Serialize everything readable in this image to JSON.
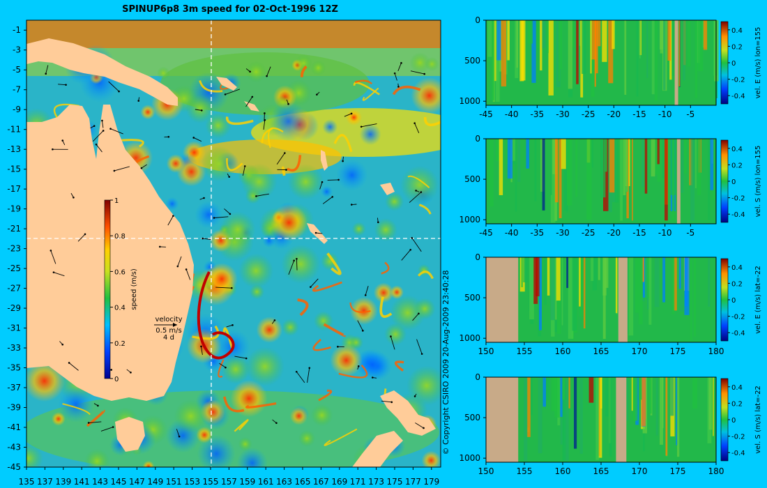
{
  "page": {
    "title": "SPINUP6p8 3m speed for 02-Oct-1996 12Z",
    "copyright": "© Copyright CSIRO 2009  20-Aug-2009 23:40:28",
    "background_color": "#00ccff",
    "land_color": "#ffcc99",
    "section_land_color": "#c8aa88"
  },
  "chart_data": [
    {
      "type": "heatmap",
      "panel": "map",
      "title": "SPINUP6p8 3m speed for 02-Oct-1996 12Z",
      "x_ticks": [
        "135",
        "137",
        "139",
        "141",
        "143",
        "145",
        "147",
        "149",
        "151",
        "153",
        "155",
        "157",
        "159",
        "161",
        "163",
        "165",
        "167",
        "169",
        "171",
        "173",
        "175",
        "177",
        "179"
      ],
      "y_ticks": [
        "-1",
        "-3",
        "-5",
        "-7",
        "-9",
        "-11",
        "-13",
        "-15",
        "-17",
        "-19",
        "-21",
        "-23",
        "-25",
        "-27",
        "-29",
        "-31",
        "-33",
        "-35",
        "-37",
        "-39",
        "-41",
        "-43",
        "-45"
      ],
      "xlim": [
        135,
        180
      ],
      "ylim": [
        -45,
        0
      ],
      "section_lines": {
        "lon": 155,
        "lat": -22
      },
      "colorbar": {
        "label": "speed (m/s)",
        "ticks": [
          "1",
          "0.8",
          "0.6",
          "0.4",
          "0.2",
          "0"
        ],
        "range": [
          0,
          1
        ]
      },
      "velocity_key": {
        "title": "velocity",
        "speed": "0.5 m/s",
        "time": "4 d"
      }
    },
    {
      "type": "heatmap",
      "panel": "section-1",
      "x_ticks": [
        "-45",
        "-40",
        "-35",
        "-30",
        "-25",
        "-20",
        "-15",
        "-10",
        "-5"
      ],
      "y_ticks": [
        "0",
        "500",
        "1000"
      ],
      "xlim": [
        -45,
        0
      ],
      "ylim": [
        0,
        1050
      ],
      "colorbar": {
        "label": "vel. E (m/s) lon=155",
        "ticks": [
          "0.4",
          "0.2",
          "0",
          "-0.2",
          "-0.4"
        ],
        "range": [
          -0.5,
          0.5
        ]
      }
    },
    {
      "type": "heatmap",
      "panel": "section-2",
      "x_ticks": [
        "-45",
        "-40",
        "-35",
        "-30",
        "-25",
        "-20",
        "-15",
        "-10",
        "-5"
      ],
      "y_ticks": [
        "0",
        "500",
        "1000"
      ],
      "xlim": [
        -45,
        0
      ],
      "ylim": [
        0,
        1050
      ],
      "colorbar": {
        "label": "vel. S (m/s) lon=155",
        "ticks": [
          "0.4",
          "0.2",
          "0",
          "-0.2",
          "-0.4"
        ],
        "range": [
          -0.5,
          0.5
        ]
      }
    },
    {
      "type": "heatmap",
      "panel": "section-3",
      "x_ticks": [
        "150",
        "155",
        "160",
        "165",
        "170",
        "175",
        "180"
      ],
      "y_ticks": [
        "0",
        "500",
        "1000"
      ],
      "xlim": [
        150,
        180
      ],
      "ylim": [
        0,
        1050
      ],
      "colorbar": {
        "label": "vel. E (m/s) lat=-22",
        "ticks": [
          "0.4",
          "0.2",
          "0",
          "-0.2",
          "-0.4"
        ],
        "range": [
          -0.5,
          0.5
        ]
      }
    },
    {
      "type": "heatmap",
      "panel": "section-4",
      "x_ticks": [
        "150",
        "155",
        "160",
        "165",
        "170",
        "175",
        "180"
      ],
      "y_ticks": [
        "0",
        "500",
        "1000"
      ],
      "xlim": [
        150,
        180
      ],
      "ylim": [
        0,
        1050
      ],
      "colorbar": {
        "label": "vel. S (m/s) lat=-22",
        "ticks": [
          "0.4",
          "0.2",
          "0",
          "-0.2",
          "-0.4"
        ],
        "range": [
          -0.5,
          0.5
        ]
      }
    }
  ]
}
